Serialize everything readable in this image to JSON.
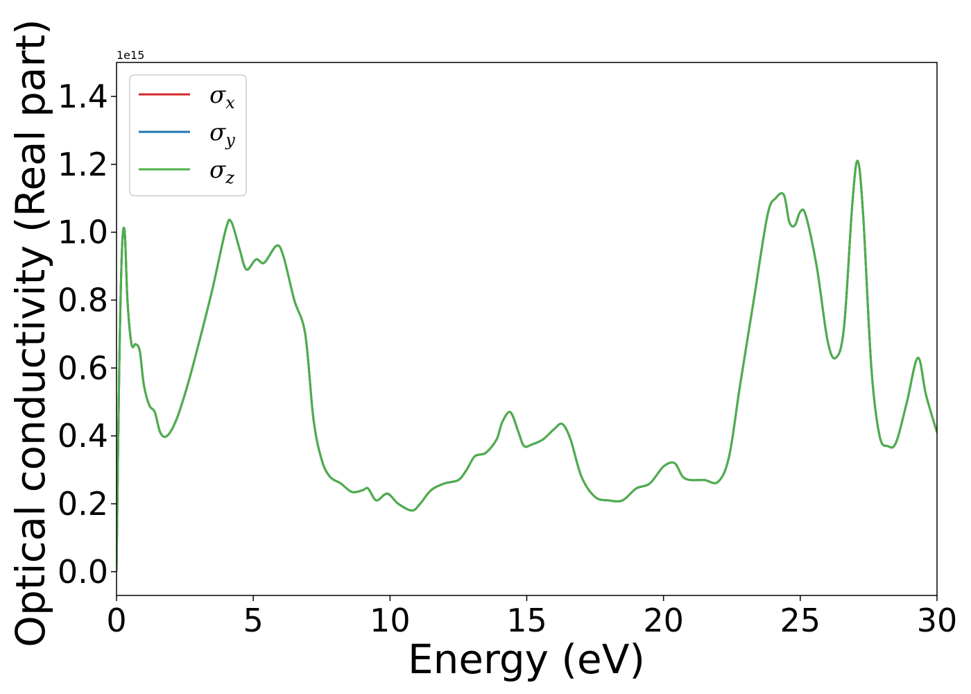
{
  "chart_data": {
    "type": "line",
    "title": "",
    "xlabel": "Energy (eV)",
    "ylabel": "Optical conductivity (Real part)",
    "y_offset_label": "1e15",
    "xlim": [
      0,
      30
    ],
    "ylim": [
      -0.07,
      1.5
    ],
    "x_ticks": [
      0,
      5,
      10,
      15,
      20,
      25,
      30
    ],
    "x_tick_labels": [
      "0",
      "5",
      "10",
      "15",
      "20",
      "25",
      "30"
    ],
    "y_ticks": [
      0.0,
      0.2,
      0.4,
      0.6,
      0.8,
      1.0,
      1.2,
      1.4
    ],
    "y_tick_labels": [
      "0.0",
      "0.2",
      "0.4",
      "0.6",
      "0.8",
      "1.0",
      "1.2",
      "1.4"
    ],
    "grid": false,
    "legend_position": "top-left",
    "x": [
      0.0,
      0.1,
      0.2,
      0.3,
      0.4,
      0.55,
      0.7,
      0.85,
      1.0,
      1.2,
      1.4,
      1.6,
      1.85,
      2.2,
      2.6,
      3.0,
      3.5,
      4.0,
      4.2,
      4.5,
      4.75,
      5.1,
      5.4,
      5.85,
      6.1,
      6.5,
      6.9,
      7.2,
      7.5,
      7.8,
      8.2,
      8.6,
      9.0,
      9.2,
      9.5,
      9.9,
      10.3,
      10.8,
      11.1,
      11.5,
      12.0,
      12.5,
      12.8,
      13.1,
      13.5,
      13.9,
      14.1,
      14.4,
      14.7,
      14.9,
      15.2,
      15.6,
      16.0,
      16.3,
      16.6,
      17.0,
      17.5,
      18.0,
      18.5,
      19.0,
      19.5,
      20.0,
      20.4,
      20.7,
      21.0,
      21.5,
      22.0,
      22.4,
      22.8,
      23.3,
      23.8,
      24.1,
      24.4,
      24.6,
      24.8,
      25.0,
      25.2,
      25.6,
      26.0,
      26.3,
      26.6,
      26.9,
      27.1,
      27.3,
      27.6,
      27.9,
      28.2,
      28.5,
      28.9,
      29.3,
      29.6,
      30.0
    ],
    "series": [
      {
        "name": "σx",
        "color": "#d62728",
        "values": [
          0.0,
          0.6,
          0.95,
          1.0,
          0.8,
          0.67,
          0.67,
          0.65,
          0.55,
          0.49,
          0.47,
          0.41,
          0.4,
          0.45,
          0.55,
          0.67,
          0.83,
          1.01,
          1.03,
          0.95,
          0.89,
          0.92,
          0.91,
          0.96,
          0.93,
          0.8,
          0.7,
          0.45,
          0.33,
          0.28,
          0.26,
          0.235,
          0.24,
          0.245,
          0.21,
          0.23,
          0.2,
          0.18,
          0.2,
          0.24,
          0.26,
          0.27,
          0.3,
          0.34,
          0.35,
          0.39,
          0.44,
          0.47,
          0.41,
          0.37,
          0.375,
          0.39,
          0.42,
          0.435,
          0.39,
          0.28,
          0.22,
          0.21,
          0.21,
          0.245,
          0.26,
          0.31,
          0.32,
          0.28,
          0.27,
          0.27,
          0.265,
          0.34,
          0.55,
          0.8,
          1.05,
          1.1,
          1.11,
          1.03,
          1.02,
          1.06,
          1.05,
          0.9,
          0.68,
          0.63,
          0.72,
          1.08,
          1.21,
          1.05,
          0.6,
          0.4,
          0.37,
          0.38,
          0.5,
          0.63,
          0.52,
          0.41
        ]
      },
      {
        "name": "σy",
        "color": "#1f77b4",
        "values": [
          0.0,
          0.6,
          0.95,
          1.0,
          0.8,
          0.67,
          0.67,
          0.65,
          0.55,
          0.49,
          0.47,
          0.41,
          0.4,
          0.45,
          0.55,
          0.67,
          0.83,
          1.01,
          1.03,
          0.95,
          0.89,
          0.92,
          0.91,
          0.96,
          0.93,
          0.8,
          0.7,
          0.45,
          0.33,
          0.28,
          0.26,
          0.235,
          0.24,
          0.245,
          0.21,
          0.23,
          0.2,
          0.18,
          0.2,
          0.24,
          0.26,
          0.27,
          0.3,
          0.34,
          0.35,
          0.39,
          0.44,
          0.47,
          0.41,
          0.37,
          0.375,
          0.39,
          0.42,
          0.435,
          0.39,
          0.28,
          0.22,
          0.21,
          0.21,
          0.245,
          0.26,
          0.31,
          0.32,
          0.28,
          0.27,
          0.27,
          0.265,
          0.34,
          0.55,
          0.8,
          1.05,
          1.1,
          1.11,
          1.03,
          1.02,
          1.06,
          1.05,
          0.9,
          0.68,
          0.63,
          0.72,
          1.08,
          1.21,
          1.05,
          0.6,
          0.4,
          0.37,
          0.38,
          0.5,
          0.63,
          0.52,
          0.41
        ]
      },
      {
        "name": "σz",
        "color": "#4daf4a",
        "values": [
          0.0,
          0.6,
          0.95,
          1.0,
          0.8,
          0.67,
          0.67,
          0.65,
          0.55,
          0.49,
          0.47,
          0.41,
          0.4,
          0.45,
          0.55,
          0.67,
          0.83,
          1.01,
          1.03,
          0.95,
          0.89,
          0.92,
          0.91,
          0.96,
          0.93,
          0.8,
          0.7,
          0.45,
          0.33,
          0.28,
          0.26,
          0.235,
          0.24,
          0.245,
          0.21,
          0.23,
          0.2,
          0.18,
          0.2,
          0.24,
          0.26,
          0.27,
          0.3,
          0.34,
          0.35,
          0.39,
          0.44,
          0.47,
          0.41,
          0.37,
          0.375,
          0.39,
          0.42,
          0.435,
          0.39,
          0.28,
          0.22,
          0.21,
          0.21,
          0.245,
          0.26,
          0.31,
          0.32,
          0.28,
          0.27,
          0.27,
          0.265,
          0.34,
          0.55,
          0.8,
          1.05,
          1.1,
          1.11,
          1.03,
          1.02,
          1.06,
          1.05,
          0.9,
          0.68,
          0.63,
          0.72,
          1.08,
          1.21,
          1.05,
          0.6,
          0.4,
          0.37,
          0.38,
          0.5,
          0.63,
          0.52,
          0.41
        ]
      }
    ],
    "legend": [
      {
        "symbol": "σ",
        "sub": "x",
        "color": "#d62728"
      },
      {
        "symbol": "σ",
        "sub": "y",
        "color": "#1f77b4"
      },
      {
        "symbol": "σ",
        "sub": "z",
        "color": "#4daf4a"
      }
    ]
  }
}
